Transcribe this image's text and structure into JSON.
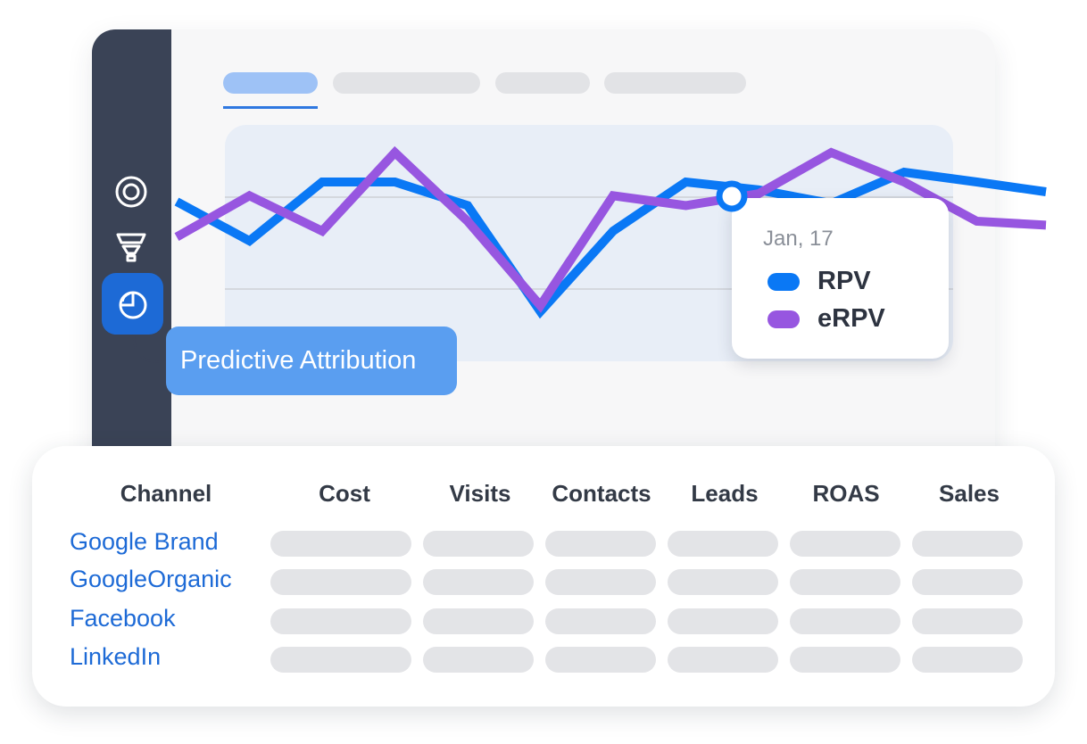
{
  "sidebar": {
    "items": [
      {
        "icon": "target-icon",
        "active": false
      },
      {
        "icon": "funnel-icon",
        "active": false
      },
      {
        "icon": "pie-chart-icon",
        "active": true
      }
    ]
  },
  "tooltip": {
    "label": "Predictive Attribution"
  },
  "legend": {
    "date": "Jan, 17",
    "items": [
      {
        "label": "RPV",
        "color": "#0a78f5"
      },
      {
        "label": "eRPV",
        "color": "#9756e0"
      }
    ]
  },
  "chart_data": {
    "type": "line",
    "series": [
      {
        "name": "RPV",
        "color": "#0a78f5",
        "values": [
          0.7,
          0.5,
          0.8,
          0.8,
          0.68,
          0.14,
          0.55,
          0.8,
          0.76,
          0.69,
          0.85,
          0.8,
          0.75
        ]
      },
      {
        "name": "eRPV",
        "color": "#9756e0",
        "values": [
          0.52,
          0.73,
          0.55,
          0.95,
          0.6,
          0.17,
          0.73,
          0.68,
          0.74,
          0.95,
          0.8,
          0.6,
          0.58
        ]
      }
    ]
  },
  "table": {
    "headers": [
      "Channel",
      "Cost",
      "Visits",
      "Contacts",
      "Leads",
      "ROAS",
      "Sales"
    ],
    "rows": [
      "Google Brand",
      "GoogleOrganic",
      "Facebook",
      "LinkedIn"
    ]
  }
}
